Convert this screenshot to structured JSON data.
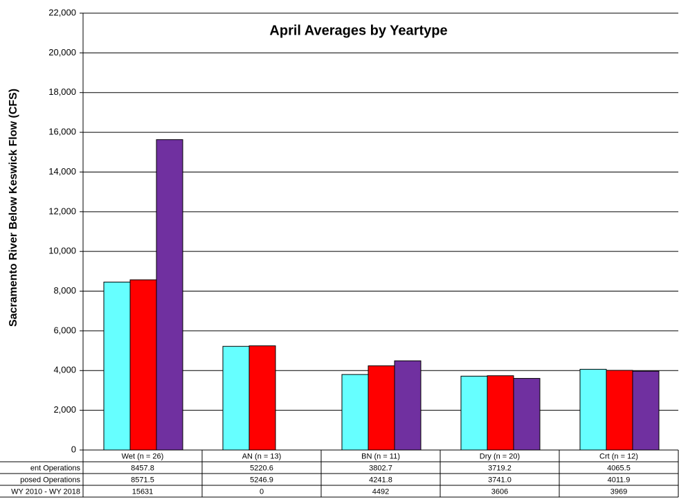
{
  "chart_data": {
    "type": "bar",
    "title": "April Averages by Yeartype",
    "y_label": "Sacramento River Below Keswick Flow (CFS)",
    "categories": [
      "Wet (n = 26)",
      "AN  (n = 13)",
      "BN  (n = 11)",
      "Dry (n = 20)",
      "Crt (n = 12)"
    ],
    "series": [
      {
        "name": "ent Operations",
        "color": "#66ffff",
        "values": [
          8457.8,
          5220.6,
          3802.7,
          3719.2,
          4065.5
        ]
      },
      {
        "name": "posed Operations",
        "color": "#ff0000",
        "values": [
          8571.5,
          5246.9,
          4241.8,
          3741,
          4011.9
        ],
        "value_labels": [
          "8571.5",
          "5246.9",
          "4241.8",
          "3741.0",
          "4011.9"
        ]
      },
      {
        "name": "WY 2010 - WY 2018",
        "color": "#7030a0",
        "values": [
          15631,
          0,
          4492,
          3606,
          3969
        ]
      }
    ],
    "ylim": [
      0,
      22000
    ],
    "yticks": [
      0,
      {
        "value": 2000,
        "label": "2,000"
      },
      {
        "value": 4000,
        "label": "4,000"
      },
      {
        "value": 6000,
        "label": "6,000"
      },
      {
        "value": 8000,
        "label": "8,000"
      },
      {
        "value": 10000,
        "label": "10,000"
      },
      {
        "value": 12000,
        "label": "12,000"
      },
      {
        "value": 14000,
        "label": "14,000"
      },
      {
        "value": 16000,
        "label": "16,000"
      },
      {
        "value": 18000,
        "label": "18,000"
      },
      {
        "value": 20000,
        "label": "20,000"
      },
      {
        "value": 22000,
        "label": "22,000"
      }
    ],
    "grid": true
  }
}
